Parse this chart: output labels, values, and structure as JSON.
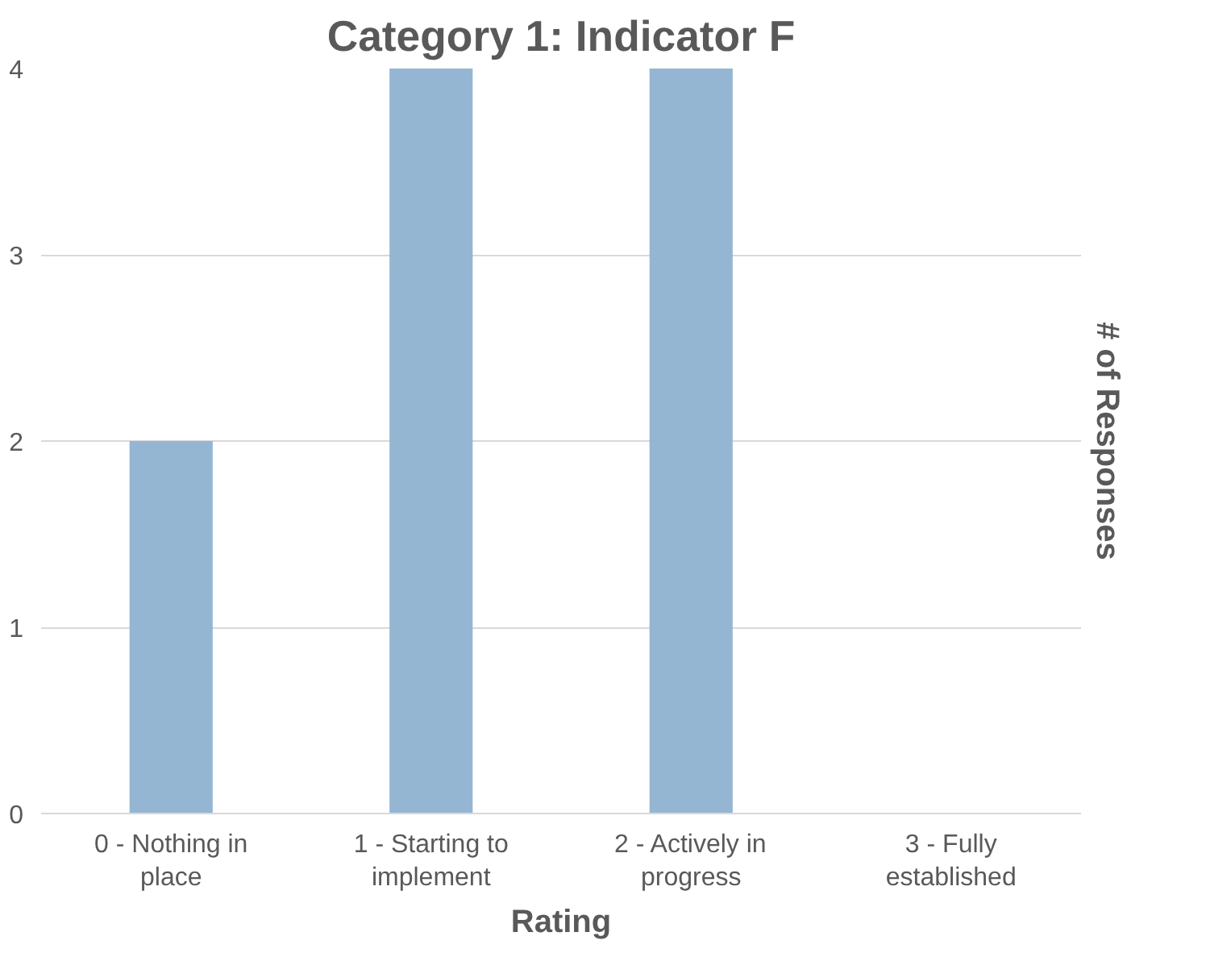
{
  "chart_data": {
    "type": "bar",
    "title": "Category 1: Indicator F",
    "xlabel": "Rating",
    "ylabel": "# of Responses",
    "categories": [
      "0 - Nothing in place",
      "1 - Starting to implement",
      "2 - Actively in progress",
      "3 - Fully established"
    ],
    "values": [
      2,
      4,
      4,
      0
    ],
    "color": "#94b6d2",
    "ylim": [
      0,
      4
    ],
    "yticks": [
      0,
      1,
      2,
      3,
      4
    ],
    "grid": "y"
  }
}
